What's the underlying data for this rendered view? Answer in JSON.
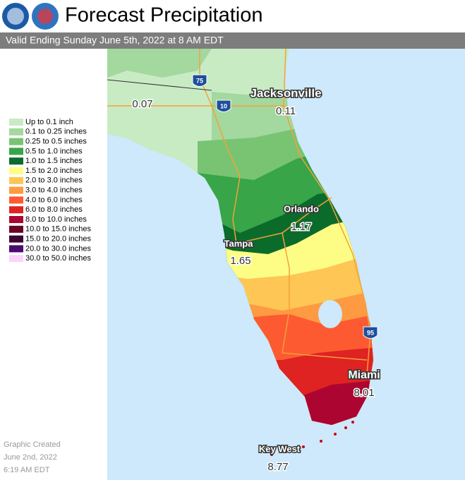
{
  "header": {
    "title": "Forecast Precipitation",
    "subtitle": "Valid Ending Sunday June 5th, 2022 at 8 AM EDT"
  },
  "legend": [
    {
      "label": "Up to 0.1 inch",
      "color": "#c8ebc4"
    },
    {
      "label": "0.1 to 0.25 inches",
      "color": "#a3d89e"
    },
    {
      "label": "0.25 to 0.5 inches",
      "color": "#78c473"
    },
    {
      "label": "0.5 to 1.0 inches",
      "color": "#37a548"
    },
    {
      "label": "1.0 to 1.5 inches",
      "color": "#0b6b2b"
    },
    {
      "label": "1.5 to 2.0 inches",
      "color": "#fdfd86"
    },
    {
      "label": "2.0 to 3.0 inches",
      "color": "#fec655"
    },
    {
      "label": "3.0 to 4.0 inches",
      "color": "#fd9a42"
    },
    {
      "label": "4.0 to 6.0 inches",
      "color": "#fd5a32"
    },
    {
      "label": "6.0 to 8.0 inches",
      "color": "#de2322"
    },
    {
      "label": "8.0 to 10.0 inches",
      "color": "#ac0531"
    },
    {
      "label": "10.0 to 15.0 inches",
      "color": "#6a0424"
    },
    {
      "label": "15.0 to 20.0 inches",
      "color": "#3c0632"
    },
    {
      "label": "20.0 to 30.0 inches",
      "color": "#4d0a70"
    },
    {
      "label": "30.0 to 50.0 inches",
      "color": "#fdd3fd"
    }
  ],
  "cities": [
    {
      "name": "Jacksonville",
      "amount": 0.11
    },
    {
      "name": "Orlando",
      "amount": 1.17
    },
    {
      "name": "Tampa",
      "amount": 1.65
    },
    {
      "name": "Miami",
      "amount": 8.01
    },
    {
      "name": "Key West",
      "amount": 8.77
    }
  ],
  "amounts": [
    0.07
  ],
  "interstates": [
    "75",
    "10",
    "95"
  ],
  "footer": [
    "Graphic Created",
    "June 2nd, 2022",
    "6:19 AM EDT"
  ]
}
